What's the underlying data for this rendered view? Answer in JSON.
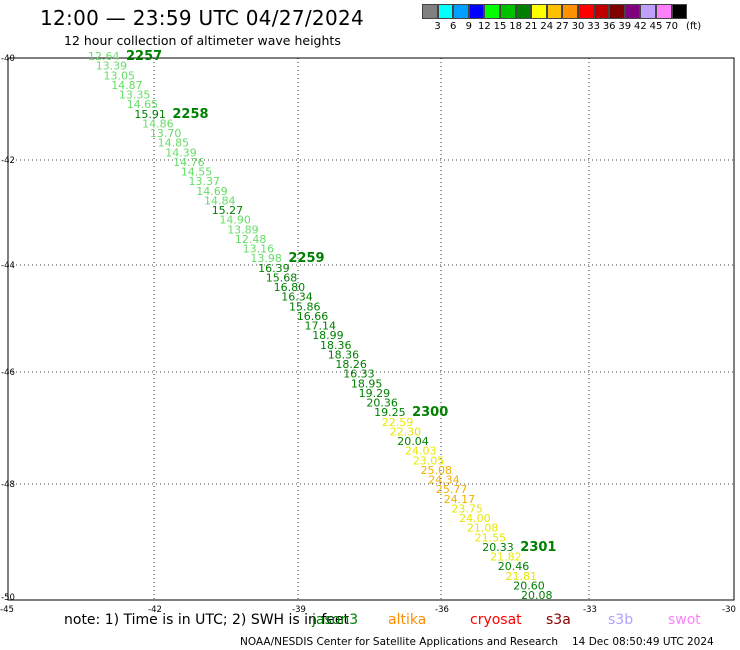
{
  "header": {
    "title": "12:00 — 23:59 UTC 04/27/2024",
    "subtitle": "12 hour collection of altimeter wave heights"
  },
  "legend": {
    "colors": [
      "#808080",
      "#00ffff",
      "#00a0ff",
      "#0000ff",
      "#00ff00",
      "#00c000",
      "#008000",
      "#ffff00",
      "#ffc000",
      "#ff9000",
      "#ff0000",
      "#c00000",
      "#800000",
      "#800080",
      "#c0a0ff",
      "#ff80ff",
      "#000000"
    ],
    "labels": [
      "3",
      "6",
      "9",
      "12",
      "15",
      "18",
      "21",
      "24",
      "27",
      "30",
      "33",
      "36",
      "39",
      "42",
      "45",
      "70"
    ],
    "unit": "(ft)"
  },
  "axes": {
    "lat_labels": [
      "-40",
      "-42",
      "-44",
      "-46",
      "-48",
      "-50"
    ],
    "lon_labels": [
      "-45",
      "-42",
      "-39",
      "-36",
      "-33",
      "-30"
    ]
  },
  "time_labels": [
    "2257",
    "2258",
    "2259",
    "2300",
    "2301"
  ],
  "wave_heights": [
    {
      "v": "12.64",
      "c": "#66dd66"
    },
    {
      "v": "13.39",
      "c": "#66dd66"
    },
    {
      "v": "13.05",
      "c": "#66dd66"
    },
    {
      "v": "14.87",
      "c": "#66dd66"
    },
    {
      "v": "13.35",
      "c": "#66dd66"
    },
    {
      "v": "14.65",
      "c": "#66dd66"
    },
    {
      "v": "15.91",
      "c": "#008000"
    },
    {
      "v": "14.86",
      "c": "#66dd66"
    },
    {
      "v": "13.70",
      "c": "#66dd66"
    },
    {
      "v": "14.85",
      "c": "#66dd66"
    },
    {
      "v": "14.39",
      "c": "#66dd66"
    },
    {
      "v": "14.76",
      "c": "#66dd66"
    },
    {
      "v": "14.55",
      "c": "#66dd66"
    },
    {
      "v": "13.37",
      "c": "#66dd66"
    },
    {
      "v": "14.69",
      "c": "#66dd66"
    },
    {
      "v": "14.84",
      "c": "#66dd66"
    },
    {
      "v": "15.27",
      "c": "#008000"
    },
    {
      "v": "14.90",
      "c": "#66dd66"
    },
    {
      "v": "13.89",
      "c": "#66dd66"
    },
    {
      "v": "12.48",
      "c": "#66dd66"
    },
    {
      "v": "13.16",
      "c": "#66dd66"
    },
    {
      "v": "13.98",
      "c": "#66dd66"
    },
    {
      "v": "16.39",
      "c": "#008000"
    },
    {
      "v": "15.68",
      "c": "#008000"
    },
    {
      "v": "16.80",
      "c": "#008000"
    },
    {
      "v": "16.34",
      "c": "#008000"
    },
    {
      "v": "15.86",
      "c": "#008000"
    },
    {
      "v": "16.66",
      "c": "#008000"
    },
    {
      "v": "17.14",
      "c": "#008000"
    },
    {
      "v": "18.99",
      "c": "#008000"
    },
    {
      "v": "18.36",
      "c": "#008000"
    },
    {
      "v": "18.36",
      "c": "#008000"
    },
    {
      "v": "18.26",
      "c": "#008000"
    },
    {
      "v": "16.33",
      "c": "#008000"
    },
    {
      "v": "18.95",
      "c": "#008000"
    },
    {
      "v": "19.29",
      "c": "#008000"
    },
    {
      "v": "20.36",
      "c": "#008000"
    },
    {
      "v": "19.25",
      "c": "#008000"
    },
    {
      "v": "22.59",
      "c": "#e8e800"
    },
    {
      "v": "22.30",
      "c": "#e8e800"
    },
    {
      "v": "20.04",
      "c": "#008000"
    },
    {
      "v": "24.03",
      "c": "#e8e800"
    },
    {
      "v": "23.05",
      "c": "#e8e800"
    },
    {
      "v": "25.08",
      "c": "#f0b000"
    },
    {
      "v": "24.34",
      "c": "#f0b000"
    },
    {
      "v": "25.77",
      "c": "#f0b000"
    },
    {
      "v": "24.17",
      "c": "#f0b000"
    },
    {
      "v": "23.75",
      "c": "#e8e800"
    },
    {
      "v": "24.00",
      "c": "#e8e800"
    },
    {
      "v": "21.08",
      "c": "#e8e800"
    },
    {
      "v": "21.55",
      "c": "#e8e800"
    },
    {
      "v": "20.33",
      "c": "#008000"
    },
    {
      "v": "21.82",
      "c": "#e8e800"
    },
    {
      "v": "20.46",
      "c": "#008000"
    },
    {
      "v": "21.81",
      "c": "#e8e800"
    },
    {
      "v": "20.60",
      "c": "#008000"
    },
    {
      "v": "20.08",
      "c": "#008000"
    }
  ],
  "note": "note:  1) Time is in UTC; 2) SWH is in feet",
  "satellites": [
    {
      "name": "jason3",
      "color": "#008000"
    },
    {
      "name": "altika",
      "color": "#ff8c00"
    },
    {
      "name": "cryosat",
      "color": "#ff0000"
    },
    {
      "name": "s3a",
      "color": "#8b0000"
    },
    {
      "name": "s3b",
      "color": "#b0a0ff"
    },
    {
      "name": "swot",
      "color": "#ff80ff"
    }
  ],
  "footer": {
    "org": "NOAA/NESDIS Center for Satellite Applications and Research",
    "timestamp": "14 Dec 08:50:49 UTC 2024"
  }
}
